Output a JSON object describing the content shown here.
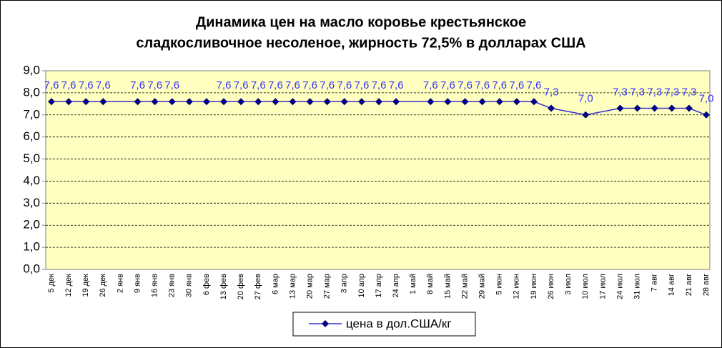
{
  "chart_data": {
    "type": "line",
    "title": [
      "Динамика цен на масло коровье крестьянское",
      "сладкосливочное несоленое, жирность  72,5%  в долларах США"
    ],
    "categories": [
      "5 дек",
      "12 дек",
      "19 дек",
      "26 дек",
      "2 янв",
      "9 янв",
      "16 янв",
      "23 янв",
      "30 янв",
      "6 фев",
      "13 фев",
      "20 фев",
      "27 фев",
      "6 мар",
      "13 мар",
      "20 мар",
      "27 мар",
      "3 апр",
      "10 апр",
      "17 апр",
      "24 апр",
      "1 май",
      "8 май",
      "15 май",
      "22 май",
      "29 май",
      "5 июн",
      "12 июн",
      "19 июн",
      "26 июн",
      "3 июл",
      "10 июл",
      "17 июл",
      "24 июл",
      "31 июл",
      "7 авг",
      "14 авг",
      "21 авг",
      "28 авг"
    ],
    "series": [
      {
        "name": "цена в дол.США/кг",
        "color": "#3333cc",
        "marker_color": "#000080",
        "label_color": "#3333ff",
        "values": [
          7.6,
          7.6,
          7.6,
          7.6,
          null,
          7.6,
          7.6,
          7.6,
          7.6,
          7.6,
          7.6,
          7.6,
          7.6,
          7.6,
          7.6,
          7.6,
          7.6,
          7.6,
          7.6,
          7.6,
          7.6,
          null,
          7.6,
          7.6,
          7.6,
          7.6,
          7.6,
          7.6,
          7.6,
          7.3,
          null,
          7.0,
          null,
          7.3,
          7.3,
          7.3,
          7.3,
          7.3,
          7.0
        ],
        "value_labels": [
          "7,6",
          "7,6",
          "7,6",
          "7,6",
          null,
          "7,6",
          "7,6",
          "7,6",
          null,
          null,
          "7,6",
          "7,6",
          "7,6",
          "7,6",
          "7,6",
          "7,6",
          "7,6",
          "7,6",
          "7,6",
          "7,6",
          "7,6",
          null,
          "7,6",
          "7,6",
          "7,6",
          "7,6",
          "7,6",
          "7,6",
          "7,6",
          "7,3",
          null,
          "7,0",
          null,
          "7,3",
          "7,3",
          "7,3",
          "7,3",
          "7,3",
          "7,0"
        ]
      }
    ],
    "ylim": [
      0,
      9
    ],
    "yticks": [
      {
        "value": 0,
        "label": "0,0"
      },
      {
        "value": 1,
        "label": "1,0"
      },
      {
        "value": 2,
        "label": "2,0"
      },
      {
        "value": 3,
        "label": "3,0"
      },
      {
        "value": 4,
        "label": "4,0"
      },
      {
        "value": 5,
        "label": "5,0"
      },
      {
        "value": 6,
        "label": "6,0"
      },
      {
        "value": 7,
        "label": "7,0"
      },
      {
        "value": 8,
        "label": "8,0"
      },
      {
        "value": 9,
        "label": "9,0"
      }
    ],
    "grid": true,
    "legend": "bottom",
    "plot_background": "#ffffc0"
  }
}
